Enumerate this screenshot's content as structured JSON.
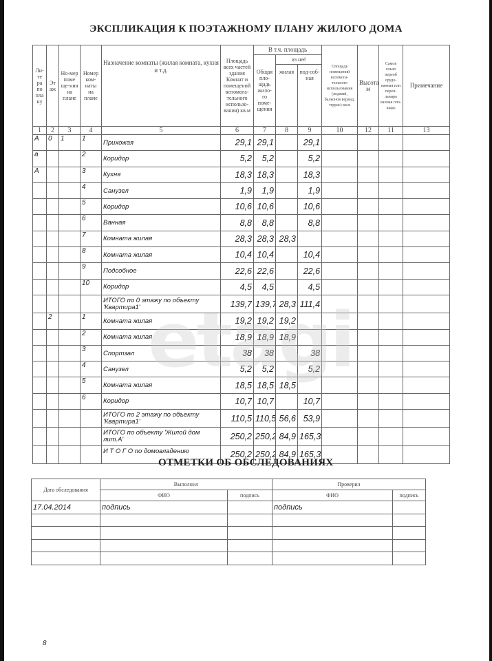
{
  "title": "ЭКСПЛИКАЦИЯ К ПОЭТАЖНОМУ ПЛАНУ ЖИЛОГО ДОМА",
  "headers": {
    "litera": "Ли-те ра по пла ну",
    "etazh": "Эт аж",
    "nomer_pom": "Но-мер поме ще-ния на плане",
    "nomer_komn": "Номер ком-наты на плане",
    "naznach": "Назначение комнаты (жилая комната, кухня и т.д.",
    "ploshad_vsego": "Площадь всех частей здания Комнат и помещений вспомога-тельного использо-вания) кв.м",
    "vtch": "В т.ч. площадь",
    "obshaya": "Общая пло-щадь жило-го поме-щения",
    "iz_nee": "из неё",
    "zhilaya": "жилая",
    "podsob": "под-соб-ная",
    "vspom": "Площадь помещений вспомога-тельного использования (лоджий, балконов веранд, террас) кв.м",
    "vysota": "Высота м",
    "samovol": "Самов ольно переоб орудо-ванная или переп-ланиро ванная пло-щадь",
    "primech": "Примечание",
    "col_numbers": [
      "1",
      "2",
      "3",
      "4",
      "5",
      "6",
      "7",
      "8",
      "9",
      "10",
      "12",
      "11",
      "13"
    ]
  },
  "rows": [
    {
      "lit": "А",
      "et": "0",
      "pom": "1",
      "komn": "1",
      "name": "Прихожая",
      "s6": "29,1",
      "s7": "29,1",
      "s8": "",
      "s9": "29,1"
    },
    {
      "lit": "а",
      "et": "",
      "pom": "",
      "komn": "2",
      "name": "Коридор",
      "s6": "5,2",
      "s7": "5,2",
      "s8": "",
      "s9": "5,2"
    },
    {
      "lit": "А",
      "et": "",
      "pom": "",
      "komn": "3",
      "name": "Кухня",
      "s6": "18,3",
      "s7": "18,3",
      "s8": "",
      "s9": "18,3"
    },
    {
      "lit": "",
      "et": "",
      "pom": "",
      "komn": "4",
      "name": "Санузел",
      "s6": "1,9",
      "s7": "1,9",
      "s8": "",
      "s9": "1,9"
    },
    {
      "lit": "",
      "et": "",
      "pom": "",
      "komn": "5",
      "name": "Коридор",
      "s6": "10,6",
      "s7": "10,6",
      "s8": "",
      "s9": "10,6"
    },
    {
      "lit": "",
      "et": "",
      "pom": "",
      "komn": "6",
      "name": "Ванная",
      "s6": "8,8",
      "s7": "8,8",
      "s8": "",
      "s9": "8,8"
    },
    {
      "lit": "",
      "et": "",
      "pom": "",
      "komn": "7",
      "name": "Комната жилая",
      "s6": "28,3",
      "s7": "28,3",
      "s8": "28,3",
      "s9": ""
    },
    {
      "lit": "",
      "et": "",
      "pom": "",
      "komn": "8",
      "name": "Комната жилая",
      "s6": "10,4",
      "s7": "10,4",
      "s8": "",
      "s9": "10,4"
    },
    {
      "lit": "",
      "et": "",
      "pom": "",
      "komn": "9",
      "name": "Подсобное",
      "s6": "22,6",
      "s7": "22,6",
      "s8": "",
      "s9": "22,6"
    },
    {
      "lit": "",
      "et": "",
      "pom": "",
      "komn": "10",
      "name": "Коридор",
      "s6": "4,5",
      "s7": "4,5",
      "s8": "",
      "s9": "4,5"
    },
    {
      "lit": "",
      "et": "",
      "pom": "",
      "komn": "",
      "name": "ИТОГО по 0 этажу по объекту 'Квартира1'",
      "s6": "139,7",
      "s7": "139,7",
      "s8": "28,3",
      "s9": "111,4",
      "total": true
    },
    {
      "lit": "",
      "et": "2",
      "pom": "",
      "komn": "1",
      "name": "Комната жилая",
      "s6": "19,2",
      "s7": "19,2",
      "s8": "19,2",
      "s9": ""
    },
    {
      "lit": "",
      "et": "",
      "pom": "",
      "komn": "2",
      "name": "Комната жилая",
      "s6": "18,9",
      "s7": "18,9",
      "s8": "18,9",
      "s9": ""
    },
    {
      "lit": "",
      "et": "",
      "pom": "",
      "komn": "3",
      "name": "Спортзал",
      "s6": "38",
      "s7": "38",
      "s8": "",
      "s9": "38"
    },
    {
      "lit": "",
      "et": "",
      "pom": "",
      "komn": "4",
      "name": "Санузел",
      "s6": "5,2",
      "s7": "5,2",
      "s8": "",
      "s9": "5,2"
    },
    {
      "lit": "",
      "et": "",
      "pom": "",
      "komn": "5",
      "name": "Комната жилая",
      "s6": "18,5",
      "s7": "18,5",
      "s8": "18,5",
      "s9": ""
    },
    {
      "lit": "",
      "et": "",
      "pom": "",
      "komn": "6",
      "name": "Коридор",
      "s6": "10,7",
      "s7": "10,7",
      "s8": "",
      "s9": "10,7"
    },
    {
      "lit": "",
      "et": "",
      "pom": "",
      "komn": "",
      "name": "ИТОГО по 2 этажу по объекту 'Квартира1'",
      "s6": "110,5",
      "s7": "110,5",
      "s8": "56,6",
      "s9": "53,9",
      "total": true
    },
    {
      "lit": "",
      "et": "",
      "pom": "",
      "komn": "",
      "name": "ИТОГО по объекту 'Жилой дом лит.А'",
      "s6": "250,2",
      "s7": "250,2",
      "s8": "84,9",
      "s9": "165,3",
      "total": true
    },
    {
      "lit": "",
      "et": "",
      "pom": "",
      "komn": "",
      "name": "И Т О Г О по домовладению",
      "s6": "250,2",
      "s7": "250,2",
      "s8": "84,9",
      "s9": "165,3",
      "total": true
    }
  ],
  "exam": {
    "title": "ОТМЕТКИ ОБ ОБСЛЕДОВАНИЯХ",
    "date_header": "Дата обследования",
    "vypolnil": "Выполнил",
    "proveril": "Проверил",
    "fio": "ФИО",
    "podpis": "подпись",
    "rows": [
      {
        "date": "17.04.2014",
        "v_fio": "подпись",
        "v_sign": "",
        "p_fio": "подпись",
        "p_sign": ""
      },
      {
        "date": "",
        "v_fio": "",
        "v_sign": "",
        "p_fio": "",
        "p_sign": ""
      },
      {
        "date": "",
        "v_fio": "",
        "v_sign": "",
        "p_fio": "",
        "p_sign": ""
      },
      {
        "date": "",
        "v_fio": "",
        "v_sign": "",
        "p_fio": "",
        "p_sign": ""
      },
      {
        "date": "",
        "v_fio": "",
        "v_sign": "",
        "p_fio": "",
        "p_sign": ""
      }
    ]
  },
  "watermark": "etagi",
  "page_number": "8"
}
